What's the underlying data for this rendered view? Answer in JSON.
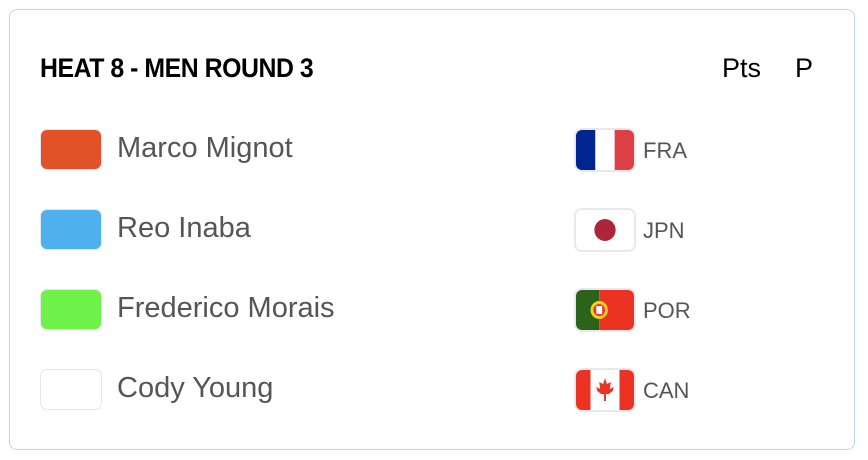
{
  "heat": {
    "title": "HEAT 8 - MEN ROUND 3",
    "columns": {
      "points": "Pts",
      "position": "P"
    }
  },
  "athletes": [
    {
      "name": "Marco Mignot",
      "color": "#e25228",
      "country": "FRA",
      "flag_icon": "france-flag-icon"
    },
    {
      "name": "Reo Inaba",
      "color": "#4eb0ec",
      "country": "JPN",
      "flag_icon": "japan-flag-icon"
    },
    {
      "name": "Frederico Morais",
      "color": "#6ef24a",
      "country": "POR",
      "flag_icon": "portugal-flag-icon"
    },
    {
      "name": "Cody Young",
      "color": "#ffffff",
      "country": "CAN",
      "flag_icon": "canada-flag-icon"
    }
  ]
}
